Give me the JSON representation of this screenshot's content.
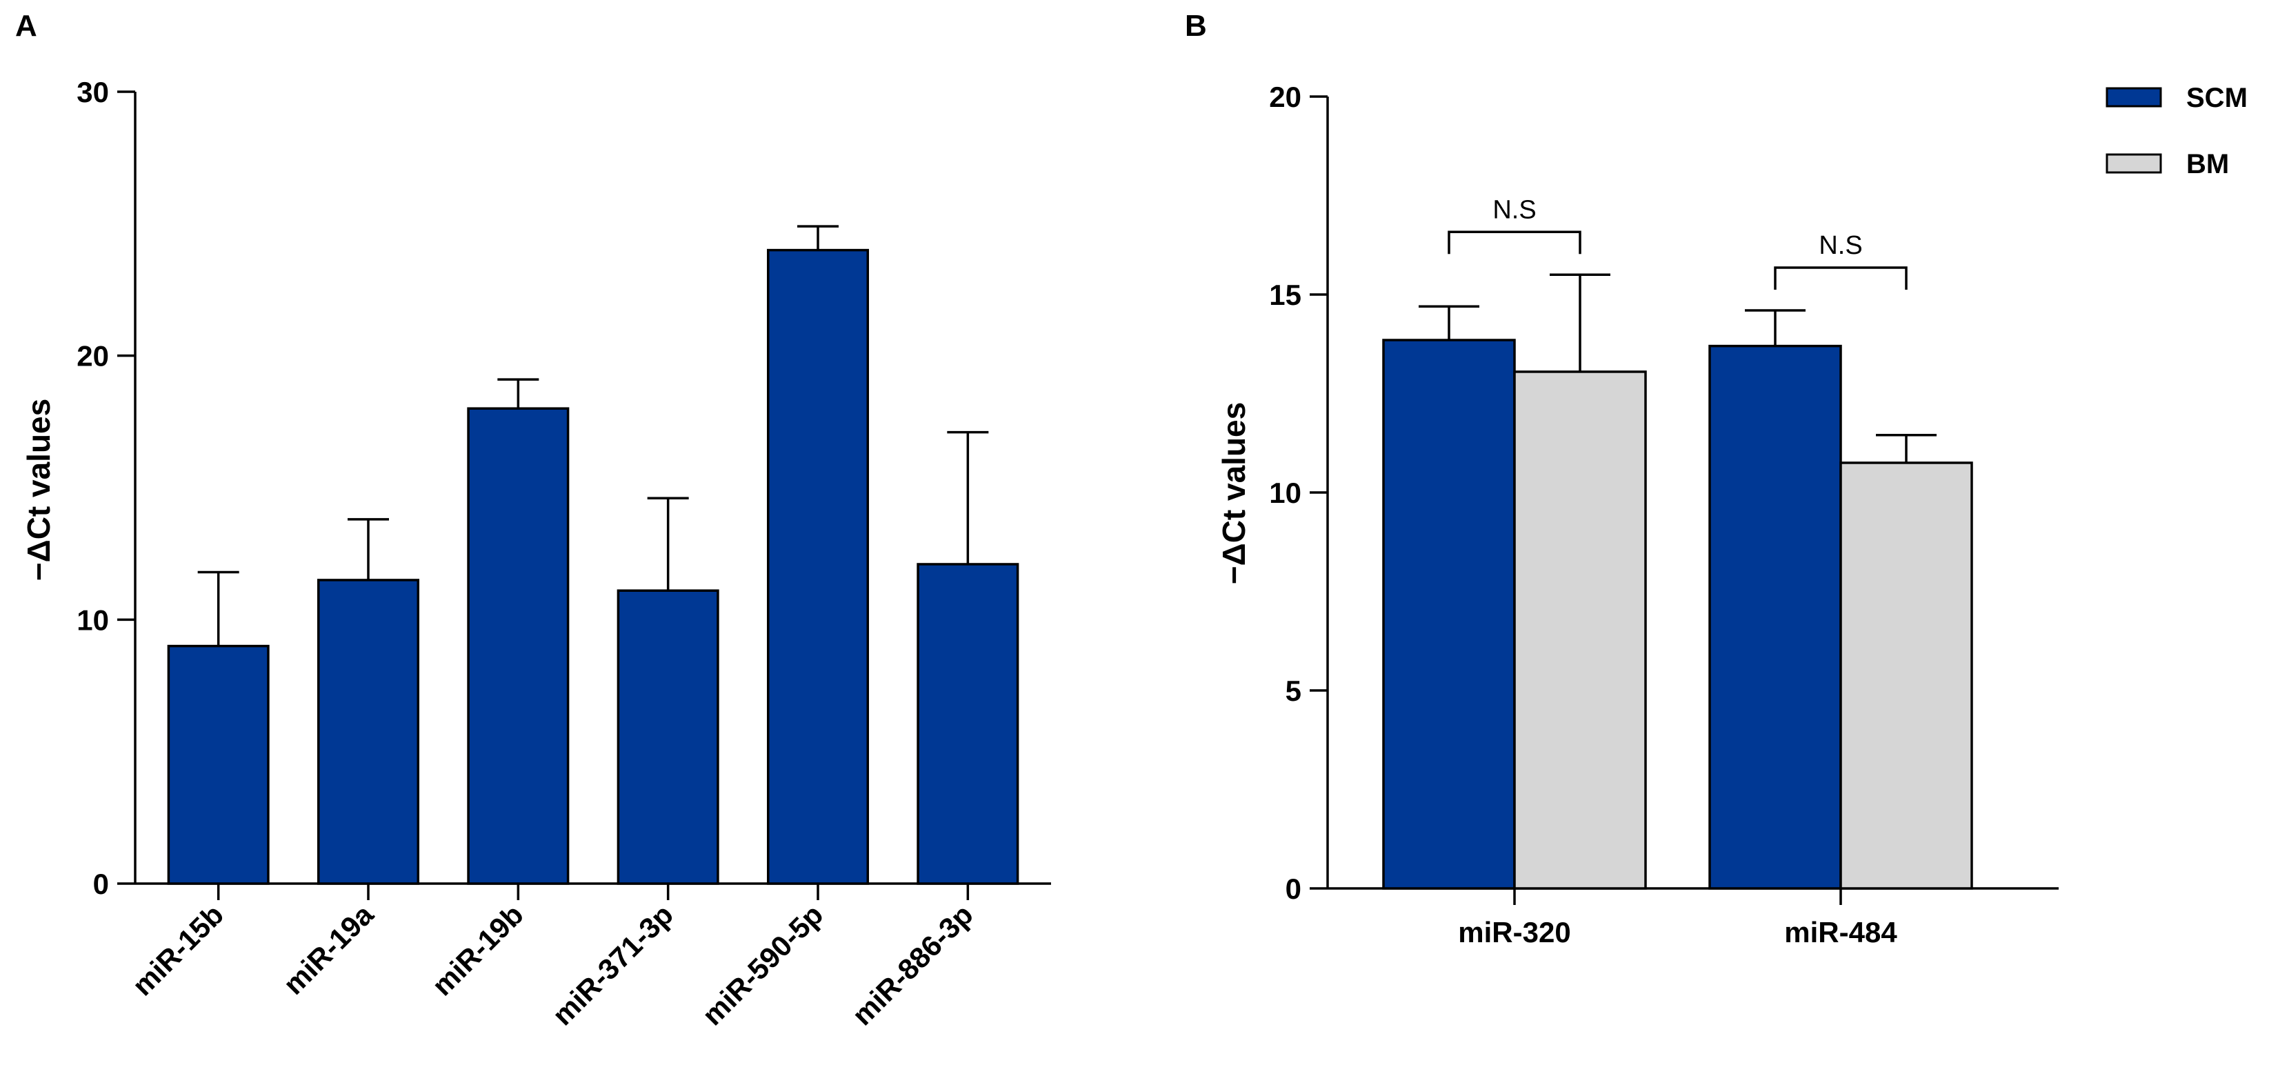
{
  "figure": {
    "colors": {
      "scm": "#003894",
      "bm": "#d6d6d6",
      "axis": "#000000"
    }
  },
  "chart_data": [
    {
      "type": "bar",
      "panel": "A",
      "title": "",
      "xlabel": "",
      "ylabel": "−ΔCt values",
      "ylim": [
        0,
        30
      ],
      "yticks": [
        0,
        10,
        20,
        30
      ],
      "categories": [
        "miR-15b",
        "miR-19a",
        "miR-19b",
        "miR-371-3p",
        "miR-590-5p",
        "miR-886-3p"
      ],
      "series": [
        {
          "name": "SCM",
          "color": "#003894",
          "values": [
            9.0,
            11.5,
            18.0,
            11.1,
            24.0,
            12.1
          ],
          "errors": [
            2.8,
            2.3,
            1.1,
            3.5,
            0.9,
            5.0
          ]
        }
      ],
      "legend": null,
      "grid": false
    },
    {
      "type": "bar",
      "panel": "B",
      "title": "",
      "xlabel": "",
      "ylabel": "−ΔCt values",
      "ylim": [
        0,
        20
      ],
      "yticks": [
        0,
        5,
        10,
        15,
        20
      ],
      "categories": [
        "miR-320",
        "miR-484"
      ],
      "series": [
        {
          "name": "SCM",
          "color": "#003894",
          "values": [
            13.85,
            13.7
          ],
          "errors": [
            0.85,
            0.9
          ]
        },
        {
          "name": "BM",
          "color": "#d6d6d6",
          "values": [
            13.05,
            10.75
          ],
          "errors": [
            2.45,
            0.7
          ]
        }
      ],
      "annotations": [
        {
          "category": "miR-320",
          "text": "N.S"
        },
        {
          "category": "miR-484",
          "text": "N.S"
        }
      ],
      "legend": "top-right",
      "grid": false
    }
  ]
}
